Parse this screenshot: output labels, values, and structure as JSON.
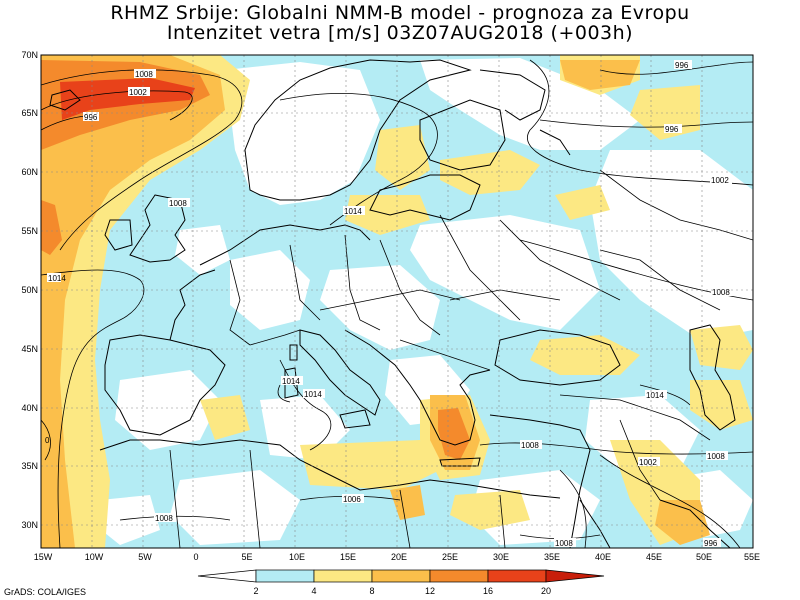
{
  "title": {
    "line1": "RHMZ Srbije: Globalni NMM-B model - prognoza za Evropu",
    "line2": "Intenzitet vetra [m/s] 03Z07AUG2018 (+003h)"
  },
  "axes": {
    "lat_labels": [
      "70N",
      "65N",
      "60N",
      "55N",
      "50N",
      "45N",
      "40N",
      "35N",
      "30N"
    ],
    "lon_labels": [
      "15W",
      "10W",
      "5W",
      "0",
      "5E",
      "10E",
      "15E",
      "20E",
      "25E",
      "30E",
      "35E",
      "40E",
      "45E",
      "50E",
      "55E"
    ]
  },
  "contour_labels": [
    {
      "text": "1008"
    },
    {
      "text": "1002"
    },
    {
      "text": "996"
    },
    {
      "text": "1008"
    },
    {
      "text": "1014"
    },
    {
      "text": "1014"
    },
    {
      "text": "1014"
    },
    {
      "text": "1014"
    },
    {
      "text": "996"
    },
    {
      "text": "996"
    },
    {
      "text": "1002"
    },
    {
      "text": "1008"
    },
    {
      "text": "1014"
    },
    {
      "text": "1008"
    },
    {
      "text": "1002"
    },
    {
      "text": "1008"
    },
    {
      "text": "1006"
    },
    {
      "text": "1008"
    },
    {
      "text": "1008"
    },
    {
      "text": "996"
    },
    {
      "text": "0"
    }
  ],
  "colorbar": {
    "labels": [
      "2",
      "4",
      "8",
      "12",
      "16",
      "20"
    ],
    "colors": [
      "#ffffff",
      "#b4ecf4",
      "#fce883",
      "#fbbf4b",
      "#f48a2c",
      "#e8421a",
      "#c81e0a"
    ]
  },
  "credit": "GrADS: COLA/IGES"
}
